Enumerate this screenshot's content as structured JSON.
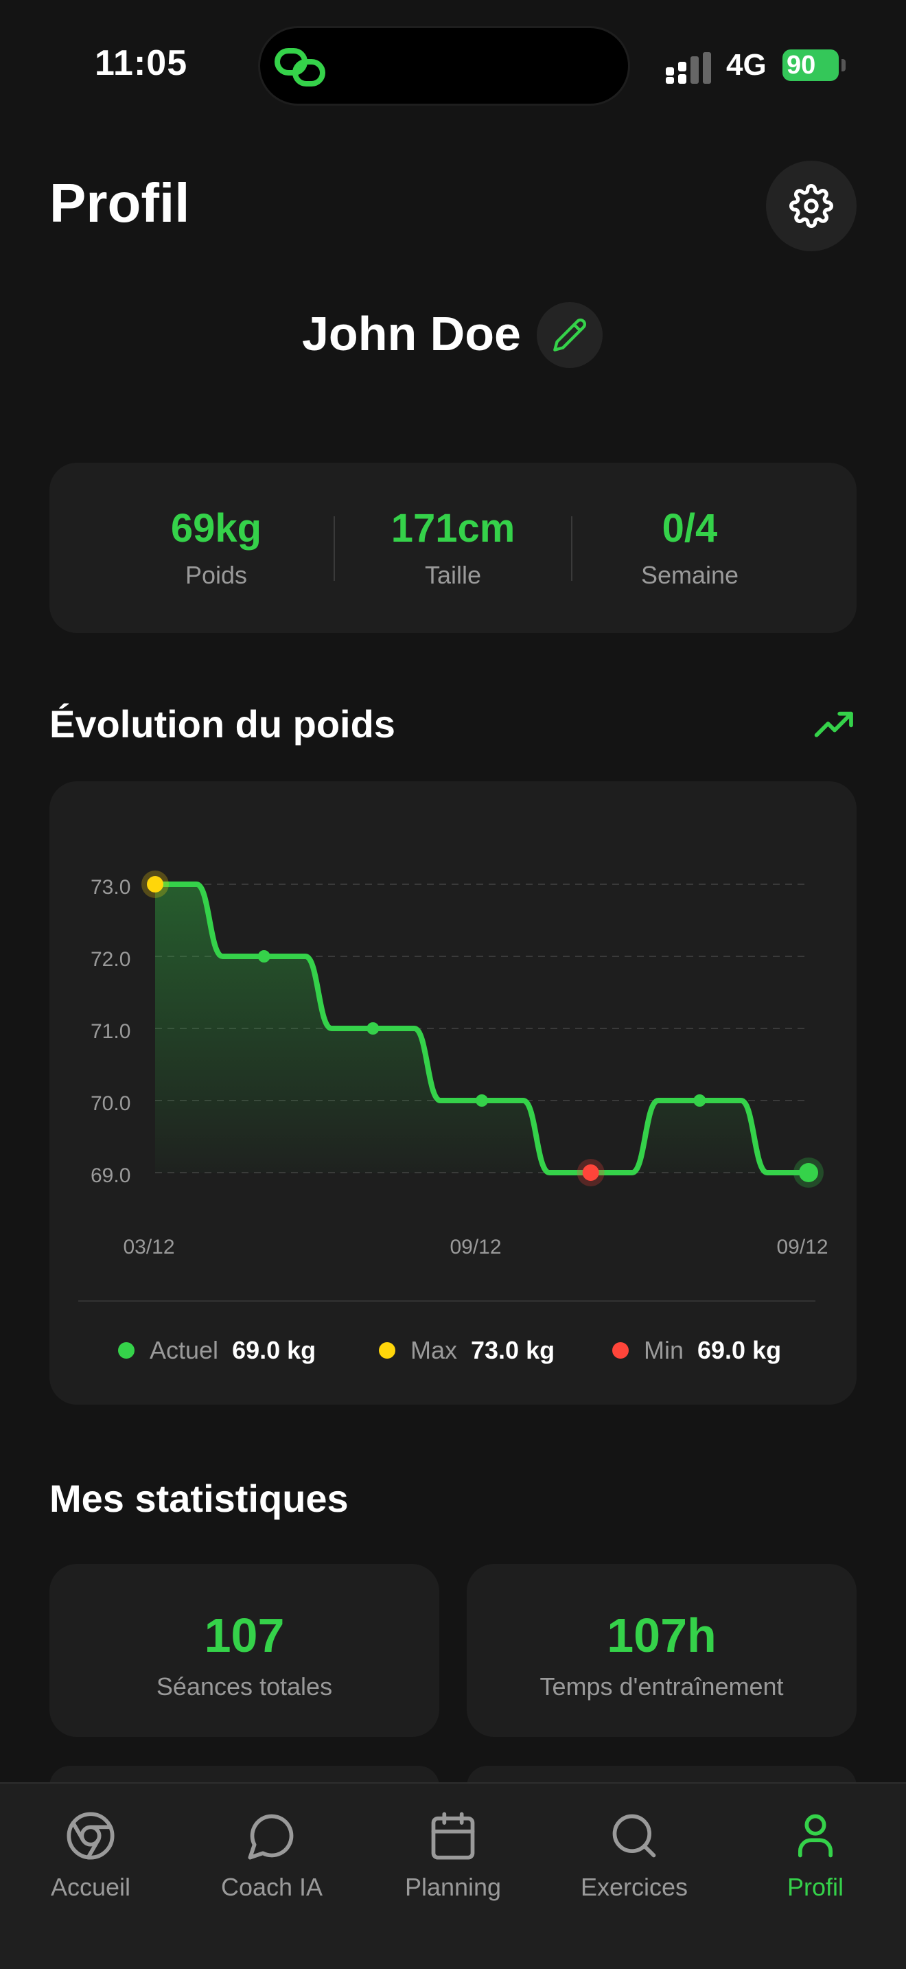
{
  "status_bar": {
    "time": "11:05",
    "network": "4G",
    "battery": "90"
  },
  "header": {
    "title": "Profil",
    "settings_icon": "gear-icon"
  },
  "user": {
    "name": "John Doe",
    "edit_icon": "pencil-icon"
  },
  "stats": [
    {
      "value": "69kg",
      "label": "Poids"
    },
    {
      "value": "171cm",
      "label": "Taille"
    },
    {
      "value": "0/4",
      "label": "Semaine"
    }
  ],
  "weight_section": {
    "title": "Évolution du poids",
    "trend_icon": "trending-up-icon"
  },
  "chart_data": {
    "type": "area",
    "x": [
      "03/12",
      "",
      "",
      "09/12",
      "",
      "",
      "09/12"
    ],
    "x_tick_labels": [
      "03/12",
      "09/12",
      "09/12"
    ],
    "values": [
      73.0,
      72.0,
      71.0,
      70.0,
      69.0,
      70.0,
      69.0
    ],
    "y_ticks": [
      "73.0",
      "72.0",
      "71.0",
      "70.0",
      "69.0"
    ],
    "ylim": [
      69.0,
      73.0
    ],
    "grid": true,
    "colors": {
      "line": "#35d24a",
      "max": "#ffd60a",
      "min": "#ff453a",
      "current": "#35d24a"
    }
  },
  "legend": [
    {
      "label": "Actuel",
      "value": "69.0 kg",
      "color": "#35d24a"
    },
    {
      "label": "Max",
      "value": "73.0 kg",
      "color": "#ffd60a"
    },
    {
      "label": "Min",
      "value": "69.0 kg",
      "color": "#ff453a"
    }
  ],
  "my_stats": {
    "title": "Mes statistiques",
    "cards": [
      {
        "value": "107",
        "label": "Séances totales"
      },
      {
        "value": "107h",
        "label": "Temps d'entraînement"
      }
    ]
  },
  "tabs": [
    {
      "label": "Accueil",
      "icon": "chrome-icon"
    },
    {
      "label": "Coach IA",
      "icon": "chat-bubble-icon"
    },
    {
      "label": "Planning",
      "icon": "calendar-icon"
    },
    {
      "label": "Exercices",
      "icon": "search-icon"
    },
    {
      "label": "Profil",
      "icon": "user-icon",
      "active": true
    }
  ],
  "accent_color": "#35d24a"
}
